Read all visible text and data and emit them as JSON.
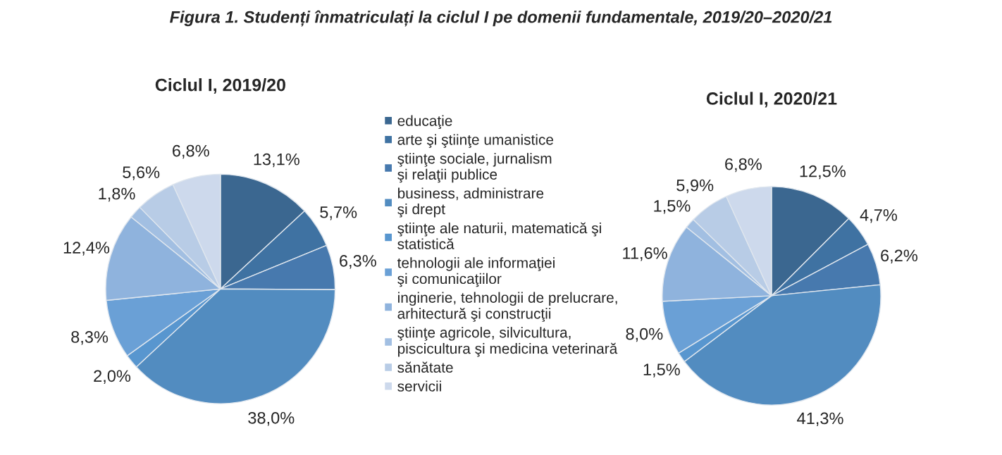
{
  "chart_data": [
    {
      "type": "pie",
      "title": "Ciclul I, 2019/20",
      "annotations": [
        "Figura 1. Studenți înmatriculați la ciclul I pe domenii fundamentale, 2019/20–2020/21"
      ],
      "legend": "right",
      "categories": [
        "educaţie",
        "arte şi ştiinţe umanistice",
        "ştiinţe sociale, jurnalism\nşi relaţii publice",
        "business, administrare\nşi drept",
        "ştiinţe ale naturii, matematică şi\nstatistică",
        "tehnologii ale informaţiei\nşi comunicaţiilor",
        "inginerie, tehnologii de prelucrare,\narhitectură şi construcţii",
        "ştiinţe agricole, silvicultura,\npiscicultura şi medicina veterinară",
        "sănătate",
        "servicii"
      ],
      "values": [
        13.1,
        5.7,
        6.3,
        38.0,
        2.0,
        8.3,
        12.4,
        1.8,
        5.6,
        6.8
      ],
      "value_labels": [
        "13,1%",
        "5,7%",
        "6,3%",
        "38,0%",
        "2,0%",
        "8,3%",
        "12,4%",
        "1,8%",
        "5,6%",
        "6,8%"
      ],
      "colors": [
        "#3b6790",
        "#3f72a2",
        "#4779ae",
        "#528cc0",
        "#5896cf",
        "#6aa0d6",
        "#8fb3dd",
        "#a2bfe2",
        "#b8cce6",
        "#cdd9ec"
      ]
    },
    {
      "type": "pie",
      "title": "Ciclul I, 2020/21",
      "categories": [
        null,
        null,
        null,
        null,
        null,
        null,
        null,
        null,
        null,
        null
      ],
      "values": [
        12.5,
        4.7,
        6.2,
        41.3,
        1.5,
        8.0,
        11.6,
        1.5,
        5.9,
        6.8
      ],
      "value_labels": [
        "12,5%",
        "4,7%",
        "6,2%",
        "41,3%",
        "1,5%",
        "8,0%",
        "11,6%",
        "1,5%",
        "5,9%",
        "6,8%"
      ],
      "colors": [
        "#3b6790",
        "#3f72a2",
        "#4779ae",
        "#528cc0",
        "#5896cf",
        "#6aa0d6",
        "#8fb3dd",
        "#a2bfe2",
        "#b8cce6",
        "#cdd9ec"
      ]
    }
  ]
}
